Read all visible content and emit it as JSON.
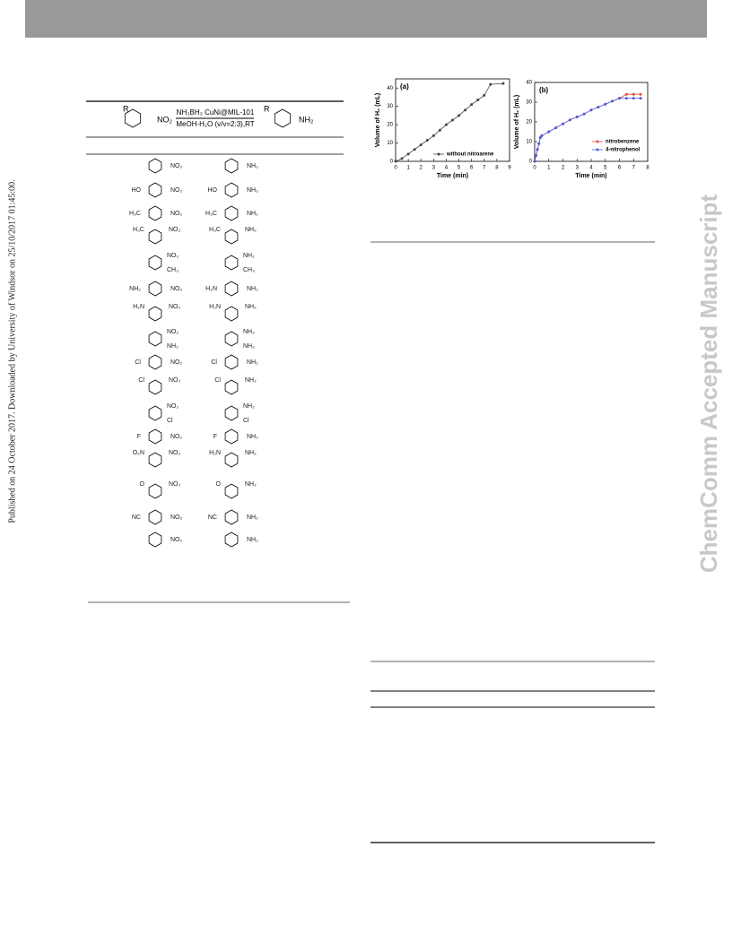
{
  "header": {
    "side_note": "Published on 24 October 2017. Downloaded by University of Windsor on 25/10/2017 01:45:00.",
    "watermark": "ChemComm Accepted Manuscript"
  },
  "scheme": {
    "r": "R",
    "left_group": "NO₂",
    "reagent": "NH₃BH₃ CuNi@MIL-101",
    "conditions": "MeOH-H₂O (v/v=2:3),RT",
    "product_r": "R",
    "product_group": "NH₂"
  },
  "substrates": [
    {
      "reactant": [
        "NO₂"
      ],
      "product": [
        "NH₂"
      ]
    },
    {
      "reactant": [
        "HO",
        "NO₂"
      ],
      "product": [
        "HO",
        "NH₂"
      ]
    },
    {
      "reactant": [
        "H₃C",
        "NO₂"
      ],
      "product": [
        "H₃C",
        "NH₂"
      ]
    },
    {
      "reactant": [
        "H₃C",
        "NO₂"
      ],
      "product": [
        "H₃C",
        "NH₂"
      ]
    },
    {
      "reactant": [
        "NO₂",
        "CH₃"
      ],
      "product": [
        "NH₂",
        "CH₃"
      ]
    },
    {
      "reactant": [
        "NH₂",
        "NO₂"
      ],
      "product": [
        "H₂N",
        "NH₂"
      ]
    },
    {
      "reactant": [
        "H₂N",
        "NO₂"
      ],
      "product": [
        "H₂N",
        "NH₂"
      ]
    },
    {
      "reactant": [
        "NO₂",
        "NH₂"
      ],
      "product": [
        "NH₂",
        "NH₂"
      ]
    },
    {
      "reactant": [
        "Cl",
        "NO₂"
      ],
      "product": [
        "Cl",
        "NH₂"
      ]
    },
    {
      "reactant": [
        "Cl",
        "NO₂"
      ],
      "product": [
        "Cl",
        "NH₂"
      ]
    },
    {
      "reactant": [
        "NO₂",
        "Cl"
      ],
      "product": [
        "NH₂",
        "Cl"
      ]
    },
    {
      "reactant": [
        "F",
        "NO₂"
      ],
      "product": [
        "F",
        "NH₂"
      ]
    },
    {
      "reactant": [
        "O₂N",
        "NO₂"
      ],
      "product": [
        "H₂N",
        "NH₂"
      ]
    },
    {
      "reactant": [
        "O",
        "NO₂"
      ],
      "product": [
        "O",
        "NH₂"
      ]
    },
    {
      "reactant": [
        "NC",
        "NO₂"
      ],
      "product": [
        "NC",
        "NH₂"
      ]
    },
    {
      "reactant": [
        "NO₂"
      ],
      "product": [
        "NH₂"
      ]
    }
  ],
  "chart_data": [
    {
      "type": "line",
      "panel_label": "(a)",
      "x_label": "Time (min)",
      "y_label": "Volume of H₂ (mL)",
      "x": [
        0,
        0.5,
        1,
        1.5,
        2,
        2.5,
        3,
        3.5,
        4,
        4.5,
        5,
        5.5,
        6,
        6.5,
        7,
        7.5,
        8.5
      ],
      "series": [
        {
          "name": "without nitroarene",
          "color": "#444444",
          "values": [
            0,
            1.5,
            4,
            6.5,
            9,
            11.5,
            14,
            17,
            20,
            22.5,
            25,
            28,
            31,
            33.5,
            36,
            42,
            42.5
          ]
        }
      ],
      "xlim": [
        0,
        9
      ],
      "ylim": [
        0,
        45
      ],
      "xticks": [
        0,
        1,
        2,
        3,
        4,
        5,
        6,
        7,
        8,
        9
      ],
      "yticks": [
        0,
        10,
        20,
        30,
        40
      ],
      "legend": "lower-right"
    },
    {
      "type": "line",
      "panel_label": "(b)",
      "x_label": "Time (min)",
      "y_label": "Volume of H₂ (mL)",
      "x": [
        0,
        0.1,
        0.2,
        0.3,
        0.4,
        0.5,
        1,
        1.5,
        2,
        2.5,
        3,
        3.5,
        4,
        4.5,
        5,
        5.5,
        6,
        6.5,
        7,
        7.5
      ],
      "series": [
        {
          "name": "nitrobenzene",
          "color": "#e8473b",
          "values": [
            0,
            3,
            6,
            9,
            12,
            13,
            15,
            17,
            19,
            21,
            22.5,
            24,
            26,
            27.5,
            29,
            30.5,
            32,
            34,
            34,
            34
          ]
        },
        {
          "name": "4-nitrophenol",
          "color": "#4a5fe0",
          "values": [
            0,
            3,
            6,
            9,
            12,
            13,
            15,
            17,
            19,
            21,
            22.5,
            24,
            26,
            27.5,
            29,
            30.5,
            32,
            32,
            32,
            32
          ]
        }
      ],
      "xlim": [
        0,
        8
      ],
      "ylim": [
        0,
        40
      ],
      "xticks": [
        0,
        1,
        2,
        3,
        4,
        5,
        6,
        7,
        8
      ],
      "yticks": [
        0,
        10,
        20,
        30,
        40
      ],
      "legend": "right"
    }
  ]
}
